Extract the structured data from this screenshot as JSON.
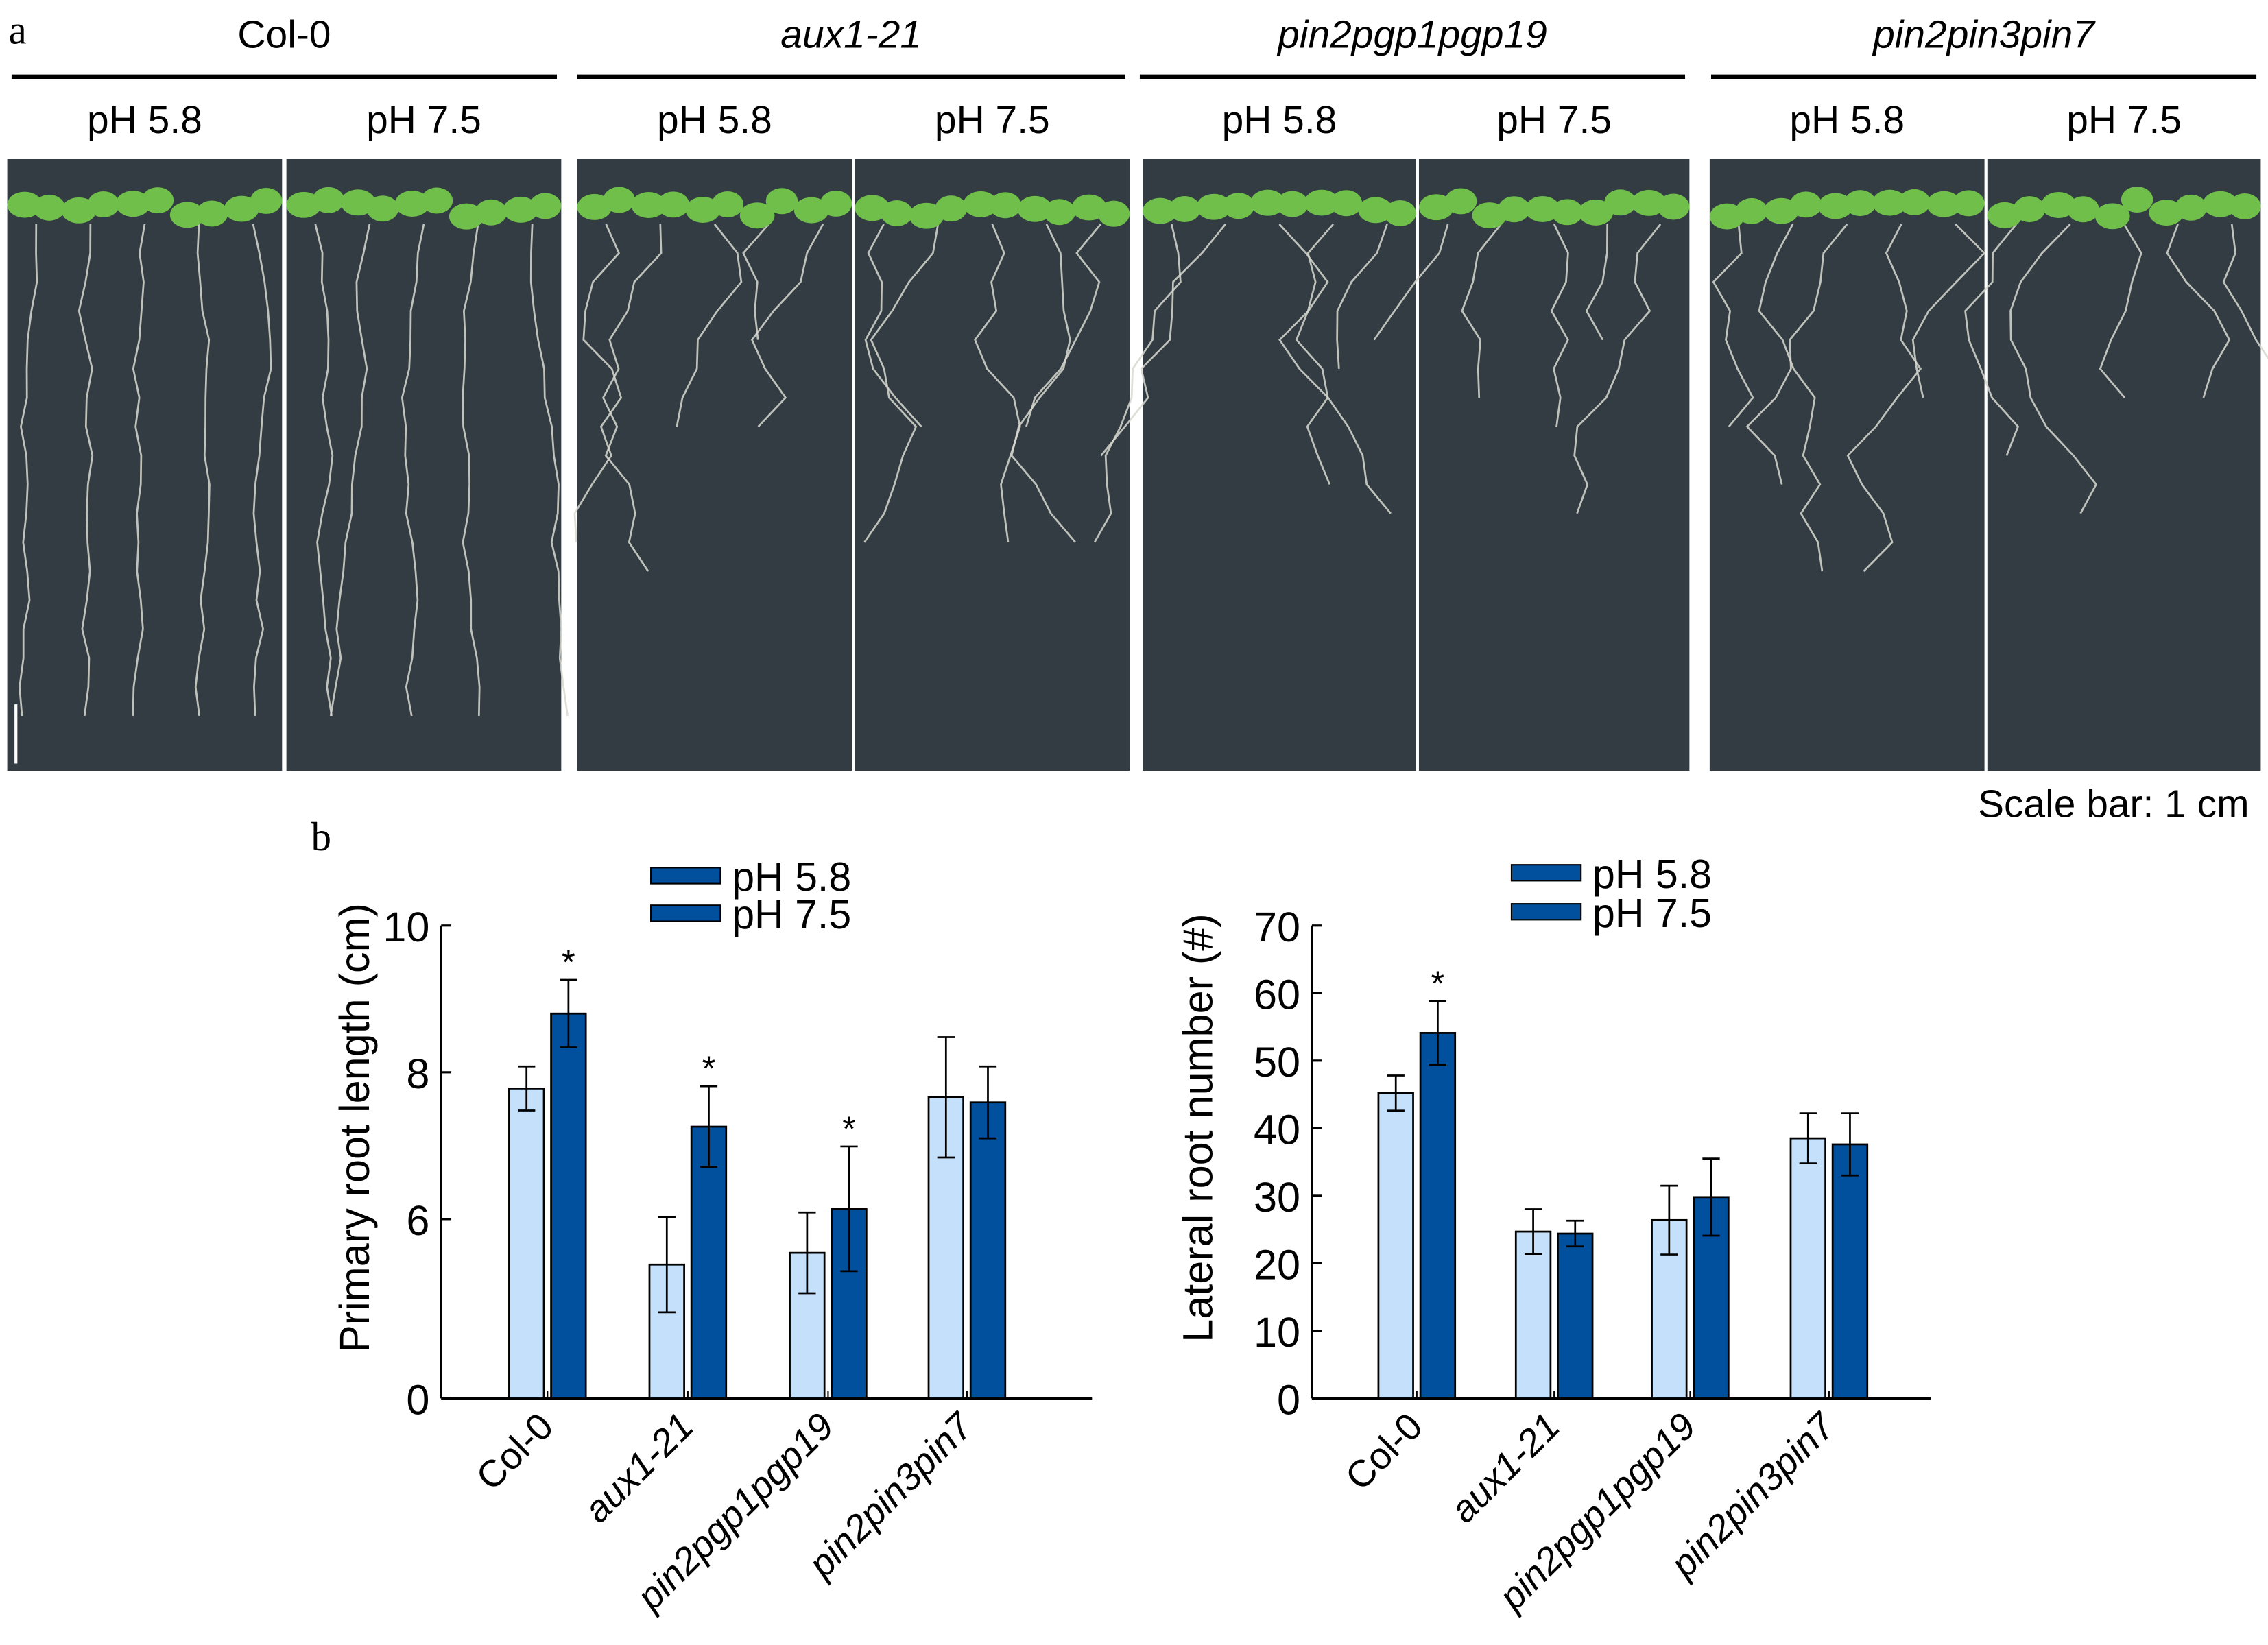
{
  "panel_a": {
    "label": "a",
    "genotypes": [
      {
        "name": "Col-0",
        "italic": false
      },
      {
        "name": "aux1-21",
        "italic": true
      },
      {
        "name": "pin2pgp1pgp19",
        "italic": true
      },
      {
        "name": "pin2pin3pin7",
        "italic": true
      }
    ],
    "conditions": [
      "pH 5.8",
      "pH 7.5"
    ],
    "scale_bar_text": "Scale bar: 1 cm"
  },
  "panel_b": {
    "label": "b"
  },
  "colors": {
    "ph58": "#c5e0fa",
    "ph75": "#00509e",
    "legend_swatch": "#00509e",
    "plate": "#323c42",
    "leaf": "#6fbf4a",
    "root": "#d8d8d0"
  },
  "chart_data": [
    {
      "type": "bar",
      "ylabel": "Primary root length (cm)",
      "categories": [
        "Col-0",
        "aux1-21",
        "pin2pgp1pgp19",
        "pin2pin3pin7"
      ],
      "category_italic": [
        false,
        true,
        true,
        true
      ],
      "y_ticks": [
        0,
        6,
        8,
        10
      ],
      "axis_break": true,
      "ylim": [
        0,
        10
      ],
      "legend": [
        "pH 5.8",
        "pH 7.5"
      ],
      "legend_position": "top",
      "grid": false,
      "series": [
        {
          "name": "pH 5.8",
          "values": [
            7.78,
            5.38,
            5.54,
            7.66
          ],
          "errors": [
            0.3,
            0.65,
            0.55,
            0.82
          ]
        },
        {
          "name": "pH 7.5",
          "values": [
            8.8,
            7.26,
            6.14,
            7.59
          ],
          "errors": [
            0.46,
            0.55,
            0.85,
            0.49
          ]
        }
      ],
      "significance": [
        {
          "category": "Col-0",
          "series": "pH 7.5",
          "mark": "*"
        },
        {
          "category": "aux1-21",
          "series": "pH 7.5",
          "mark": "*"
        },
        {
          "category": "pin2pgp1pgp19",
          "series": "pH 7.5",
          "mark": "*"
        }
      ]
    },
    {
      "type": "bar",
      "ylabel": "Lateral root number (#)",
      "categories": [
        "Col-0",
        "aux1-21",
        "pin2pgp1pgp19",
        "pin2pin3pin7"
      ],
      "category_italic": [
        false,
        true,
        true,
        true
      ],
      "y_ticks": [
        0,
        10,
        20,
        30,
        40,
        50,
        60,
        70
      ],
      "axis_break": false,
      "ylim": [
        0,
        70
      ],
      "legend": [
        "pH 5.8",
        "pH 7.5"
      ],
      "legend_position": "top",
      "grid": false,
      "series": [
        {
          "name": "pH 5.8",
          "values": [
            45.2,
            24.7,
            26.4,
            38.5
          ],
          "errors": [
            2.6,
            3.3,
            5.1,
            3.7
          ]
        },
        {
          "name": "pH 7.5",
          "values": [
            54.1,
            24.4,
            29.8,
            37.6
          ],
          "errors": [
            4.7,
            1.9,
            5.7,
            4.6
          ]
        }
      ],
      "significance": [
        {
          "category": "Col-0",
          "series": "pH 7.5",
          "mark": "*"
        }
      ]
    }
  ]
}
